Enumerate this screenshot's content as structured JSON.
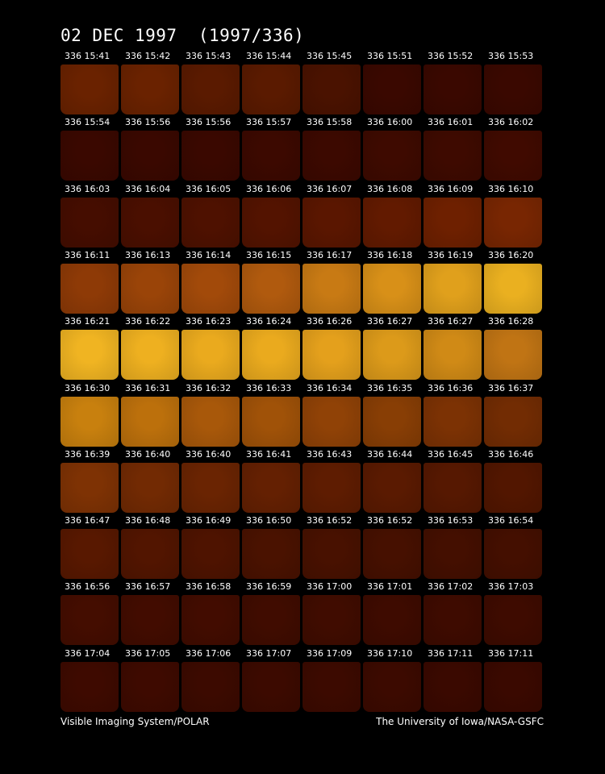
{
  "header": {
    "title": "02 DEC 1997  (1997/336)"
  },
  "rows": [
    [
      {
        "label": "336 15:41",
        "color": "#6a2200"
      },
      {
        "label": "336 15:42",
        "color": "#6a2200"
      },
      {
        "label": "336 15:43",
        "color": "#5a1a00"
      },
      {
        "label": "336 15:44",
        "color": "#5a1a00"
      },
      {
        "label": "336 15:45",
        "color": "#4a1200"
      },
      {
        "label": "336 15:51",
        "color": "#3a0800"
      },
      {
        "label": "336 15:52",
        "color": "#3a0800"
      },
      {
        "label": "336 15:53",
        "color": "#3a0800"
      }
    ],
    [
      {
        "label": "336 15:54",
        "color": "#3a0800"
      },
      {
        "label": "336 15:56",
        "color": "#3a0800"
      },
      {
        "label": "336 15:56",
        "color": "#3a0800"
      },
      {
        "label": "336 15:57",
        "color": "#3c0900"
      },
      {
        "label": "336 15:58",
        "color": "#3c0900"
      },
      {
        "label": "336 16:00",
        "color": "#3e0a00"
      },
      {
        "label": "336 16:01",
        "color": "#3e0a00"
      },
      {
        "label": "336 16:02",
        "color": "#400a00"
      }
    ],
    [
      {
        "label": "336 16:03",
        "color": "#450d00"
      },
      {
        "label": "336 16:04",
        "color": "#4a0f00"
      },
      {
        "label": "336 16:05",
        "color": "#4e1100"
      },
      {
        "label": "336 16:06",
        "color": "#531300"
      },
      {
        "label": "336 16:07",
        "color": "#5a1600"
      },
      {
        "label": "336 16:08",
        "color": "#621a00"
      },
      {
        "label": "336 16:09",
        "color": "#6e2000"
      },
      {
        "label": "336 16:10",
        "color": "#782602"
      }
    ],
    [
      {
        "label": "336 16:11",
        "color": "#8e3a06"
      },
      {
        "label": "336 16:13",
        "color": "#9a4408"
      },
      {
        "label": "336 16:14",
        "color": "#a24a0a"
      },
      {
        "label": "336 16:15",
        "color": "#b05a0e"
      },
      {
        "label": "336 16:17",
        "color": "#c87a14"
      },
      {
        "label": "336 16:18",
        "color": "#d89018"
      },
      {
        "label": "336 16:19",
        "color": "#e0a01c"
      },
      {
        "label": "336 16:20",
        "color": "#eab020"
      }
    ],
    [
      {
        "label": "336 16:21",
        "color": "#f0b422"
      },
      {
        "label": "336 16:22",
        "color": "#eeb020"
      },
      {
        "label": "336 16:23",
        "color": "#eaaa1e"
      },
      {
        "label": "336 16:24",
        "color": "#eaaa1e"
      },
      {
        "label": "336 16:26",
        "color": "#e4a01c"
      },
      {
        "label": "336 16:27",
        "color": "#dc9a1a"
      },
      {
        "label": "336 16:27",
        "color": "#d08a16"
      },
      {
        "label": "336 16:28",
        "color": "#c07414"
      }
    ],
    [
      {
        "label": "336 16:30",
        "color": "#c8800e"
      },
      {
        "label": "336 16:31",
        "color": "#bc700c"
      },
      {
        "label": "336 16:32",
        "color": "#a8580a"
      },
      {
        "label": "336 16:33",
        "color": "#a05208"
      },
      {
        "label": "336 16:34",
        "color": "#904206"
      },
      {
        "label": "336 16:35",
        "color": "#883e05"
      },
      {
        "label": "336 16:36",
        "color": "#7c3204"
      },
      {
        "label": "336 16:37",
        "color": "#722c03"
      }
    ],
    [
      {
        "label": "336 16:39",
        "color": "#7e3204"
      },
      {
        "label": "336 16:40",
        "color": "#722a03"
      },
      {
        "label": "336 16:40",
        "color": "#6a2402"
      },
      {
        "label": "336 16:41",
        "color": "#642002"
      },
      {
        "label": "336 16:43",
        "color": "#5e1c01"
      },
      {
        "label": "336 16:44",
        "color": "#5a1a01"
      },
      {
        "label": "336 16:45",
        "color": "#561801"
      },
      {
        "label": "336 16:46",
        "color": "#521600"
      }
    ],
    [
      {
        "label": "336 16:47",
        "color": "#581800"
      },
      {
        "label": "336 16:48",
        "color": "#521500"
      },
      {
        "label": "336 16:49",
        "color": "#4e1300"
      },
      {
        "label": "336 16:50",
        "color": "#4a1200"
      },
      {
        "label": "336 16:52",
        "color": "#481100"
      },
      {
        "label": "336 16:52",
        "color": "#461000"
      },
      {
        "label": "336 16:53",
        "color": "#440f00"
      },
      {
        "label": "336 16:54",
        "color": "#440f00"
      }
    ],
    [
      {
        "label": "336 16:56",
        "color": "#440d00"
      },
      {
        "label": "336 16:57",
        "color": "#420c00"
      },
      {
        "label": "336 16:58",
        "color": "#420c00"
      },
      {
        "label": "336 16:59",
        "color": "#400c00"
      },
      {
        "label": "336 17:00",
        "color": "#400c00"
      },
      {
        "label": "336 17:01",
        "color": "#3e0b00"
      },
      {
        "label": "336 17:02",
        "color": "#3e0b00"
      },
      {
        "label": "336 17:03",
        "color": "#3e0b00"
      }
    ],
    [
      {
        "label": "336 17:04",
        "color": "#3e0a00"
      },
      {
        "label": "336 17:05",
        "color": "#3e0a00"
      },
      {
        "label": "336 17:06",
        "color": "#3c0a00"
      },
      {
        "label": "336 17:07",
        "color": "#3c0a00"
      },
      {
        "label": "336 17:09",
        "color": "#3c0a00"
      },
      {
        "label": "336 17:10",
        "color": "#3c0a00"
      },
      {
        "label": "336 17:11",
        "color": "#3a0900"
      },
      {
        "label": "336 17:11",
        "color": "#3a0900"
      }
    ]
  ],
  "footer": {
    "left": "Visible Imaging System/POLAR",
    "right": "The University of Iowa/NASA-GSFC"
  }
}
